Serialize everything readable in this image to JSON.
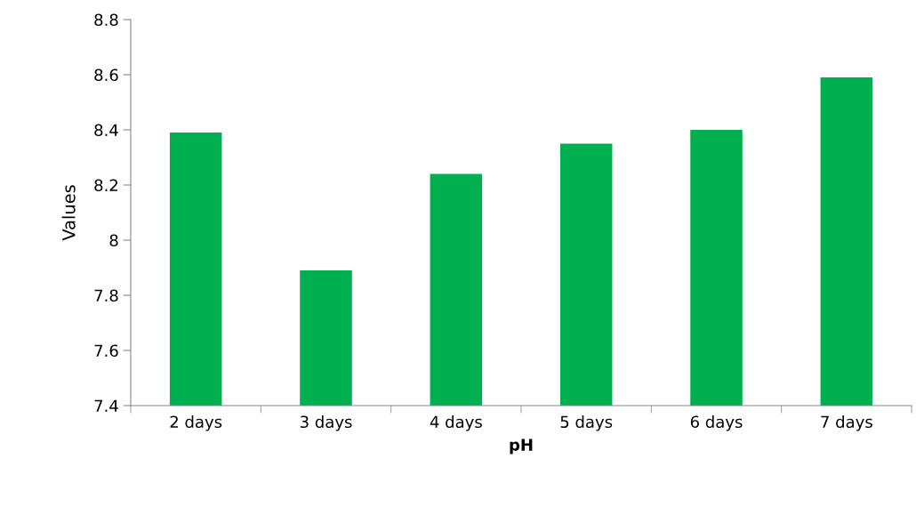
{
  "chart_data": {
    "type": "bar",
    "xlabel": "pH",
    "ylabel": "Values",
    "categories": [
      "2 days",
      "3 days",
      "4 days",
      "5 days",
      "6 days",
      "7 days"
    ],
    "values": [
      8.39,
      7.89,
      8.24,
      8.35,
      8.4,
      8.59
    ],
    "color": "#00b050",
    "ylim": [
      7.4,
      8.8
    ],
    "yticks": [
      7.4,
      7.6,
      7.8,
      8,
      8.2,
      8.4,
      8.6,
      8.8
    ],
    "grid": false,
    "legend": false
  }
}
